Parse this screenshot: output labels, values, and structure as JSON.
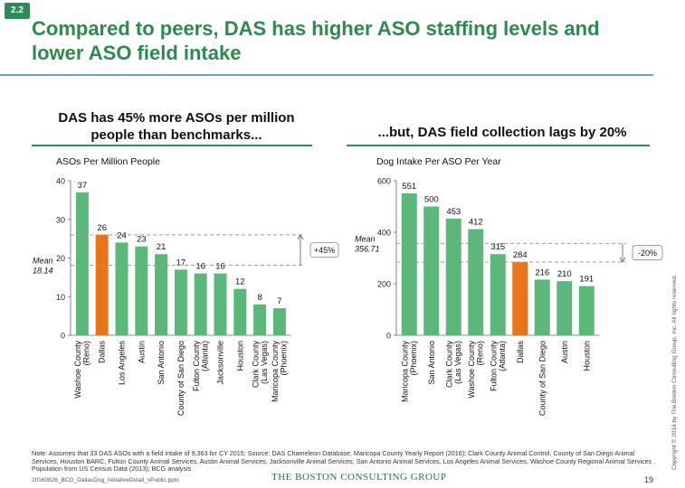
{
  "badge": "2.2",
  "title": "Compared to peers, DAS has higher ASO staffing levels and lower ASO field intake",
  "left_heading": "DAS has 45% more ASOs per million people than benchmarks...",
  "right_heading": "...but, DAS field collection lags by 20%",
  "colors": {
    "bar": "#5cb87a",
    "highlight": "#e8751a",
    "title": "#2d8a4e",
    "dashed": "#999999"
  },
  "chart_data": [
    {
      "type": "bar",
      "title": "ASOs Per Million People",
      "categories": [
        "Washoe County (Reno)",
        "Dallas",
        "Los Angeles",
        "Austin",
        "San Antonio",
        "County of San Diego",
        "Fulton County (Atlanta)",
        "Jacksonville",
        "Houston",
        "Clark County (Las Vegas)",
        "Maricopa County (Phoenix)"
      ],
      "category_lines": [
        [
          "Washoe County",
          "(Reno)"
        ],
        [
          "Dallas"
        ],
        [
          "Los Angeles"
        ],
        [
          "Austin"
        ],
        [
          "San Antonio"
        ],
        [
          "County of San Diego"
        ],
        [
          "Fulton County",
          "(Atlanta)"
        ],
        [
          "Jacksonville"
        ],
        [
          "Houston"
        ],
        [
          "Clark County",
          "(Las Vegas)"
        ],
        [
          "Maricopa County",
          "(Phoenix)"
        ]
      ],
      "values": [
        37,
        26,
        24,
        23,
        21,
        17,
        16,
        16,
        12,
        8,
        7
      ],
      "highlight_index": 1,
      "ylim": [
        0,
        40
      ],
      "yticks": [
        0,
        10,
        20,
        30,
        40
      ],
      "mean": 18.14,
      "mean_label": "Mean",
      "mean_value_label": "18.14",
      "callout": "+45%"
    },
    {
      "type": "bar",
      "title": "Dog Intake Per ASO Per Year",
      "categories": [
        "Maricopa County (Phoenix)",
        "San Antonio",
        "Clark County (Las Vegas)",
        "Washoe County (Reno)",
        "Fulton County (Atlanta)",
        "Dallas",
        "County of San Diego",
        "Austin",
        "Houston"
      ],
      "category_lines": [
        [
          "Maricopa County",
          "(Phoenix)"
        ],
        [
          "San Antonio"
        ],
        [
          "Clark County",
          "(Las Vegas)"
        ],
        [
          "Washoe County",
          "(Reno)"
        ],
        [
          "Fulton County",
          "(Atlanta)"
        ],
        [
          "Dallas"
        ],
        [
          "County of San Diego"
        ],
        [
          "Austin"
        ],
        [
          "Houston"
        ]
      ],
      "values": [
        551,
        500,
        453,
        412,
        315,
        284,
        216,
        210,
        191
      ],
      "highlight_index": 5,
      "ylim": [
        0,
        600
      ],
      "yticks": [
        0,
        200,
        400,
        600
      ],
      "mean": 356.71,
      "mean_label": "Mean",
      "mean_value_label": "356.71",
      "callout": "-20%"
    }
  ],
  "note": "Note: Assumes that 33 DAS ASOs with a field intake of 9,363 for  CY 2015; Source: DAS Chameleon Database; Maricopa County Yearly Report (2016); Clark County Animal Control, County of San Diego Animal Services, Houston BARC, Fulton County Animal Services, Austin Animal Services, Jacksonville Animal Services, San Antonio Animal Services, Los Angeles Animal Services, Washoe County Regional Animal Services . Population from US Census Data (2013); BCG analysis",
  "footer_file": "20160826_BCG_DallasDog_InitiativeDetail_vPublic.pptx",
  "footer_brand": "THE BOSTON CONSULTING GROUP",
  "page_number": "19",
  "copyright": "Copyright © 2016 by The Boston Consulting Group, Inc. All rights reserved."
}
